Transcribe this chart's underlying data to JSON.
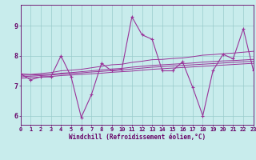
{
  "xlabel": "Windchill (Refroidissement éolien,°C)",
  "background_color": "#c8ecec",
  "line_color": "#993399",
  "grid_color": "#99cccc",
  "axis_color": "#660066",
  "x_data": [
    0,
    1,
    2,
    3,
    4,
    5,
    6,
    7,
    8,
    9,
    10,
    11,
    12,
    13,
    14,
    15,
    16,
    17,
    18,
    19,
    20,
    21,
    22,
    23
  ],
  "y_main": [
    7.4,
    7.2,
    7.3,
    7.3,
    8.0,
    7.3,
    5.95,
    6.7,
    7.75,
    7.5,
    7.55,
    9.3,
    8.7,
    8.55,
    7.5,
    7.5,
    7.8,
    6.95,
    6.0,
    7.5,
    8.05,
    7.9,
    8.9,
    7.5
  ],
  "y_upper": [
    7.4,
    7.38,
    7.41,
    7.44,
    7.5,
    7.52,
    7.55,
    7.6,
    7.65,
    7.7,
    7.72,
    7.78,
    7.82,
    7.87,
    7.88,
    7.91,
    7.93,
    7.97,
    8.02,
    8.04,
    8.07,
    8.09,
    8.12,
    8.15
  ],
  "y_mid1": [
    7.35,
    7.36,
    7.37,
    7.38,
    7.42,
    7.44,
    7.47,
    7.5,
    7.53,
    7.56,
    7.58,
    7.62,
    7.65,
    7.68,
    7.7,
    7.72,
    7.74,
    7.76,
    7.79,
    7.81,
    7.83,
    7.84,
    7.86,
    7.88
  ],
  "y_mid2": [
    7.3,
    7.32,
    7.34,
    7.36,
    7.39,
    7.41,
    7.43,
    7.46,
    7.48,
    7.51,
    7.53,
    7.56,
    7.59,
    7.62,
    7.64,
    7.66,
    7.68,
    7.7,
    7.72,
    7.74,
    7.76,
    7.78,
    7.8,
    7.82
  ],
  "y_lower": [
    7.25,
    7.27,
    7.29,
    7.31,
    7.34,
    7.36,
    7.38,
    7.4,
    7.42,
    7.45,
    7.47,
    7.49,
    7.52,
    7.55,
    7.57,
    7.59,
    7.61,
    7.63,
    7.65,
    7.67,
    7.69,
    7.71,
    7.73,
    7.75
  ],
  "xlim": [
    0,
    23
  ],
  "ylim": [
    5.7,
    9.7
  ],
  "yticks": [
    6,
    7,
    8,
    9
  ],
  "xticks": [
    0,
    1,
    2,
    3,
    4,
    5,
    6,
    7,
    8,
    9,
    10,
    11,
    12,
    13,
    14,
    15,
    16,
    17,
    18,
    19,
    20,
    21,
    22,
    23
  ],
  "tick_fontsize": 5.0,
  "xlabel_fontsize": 5.5
}
